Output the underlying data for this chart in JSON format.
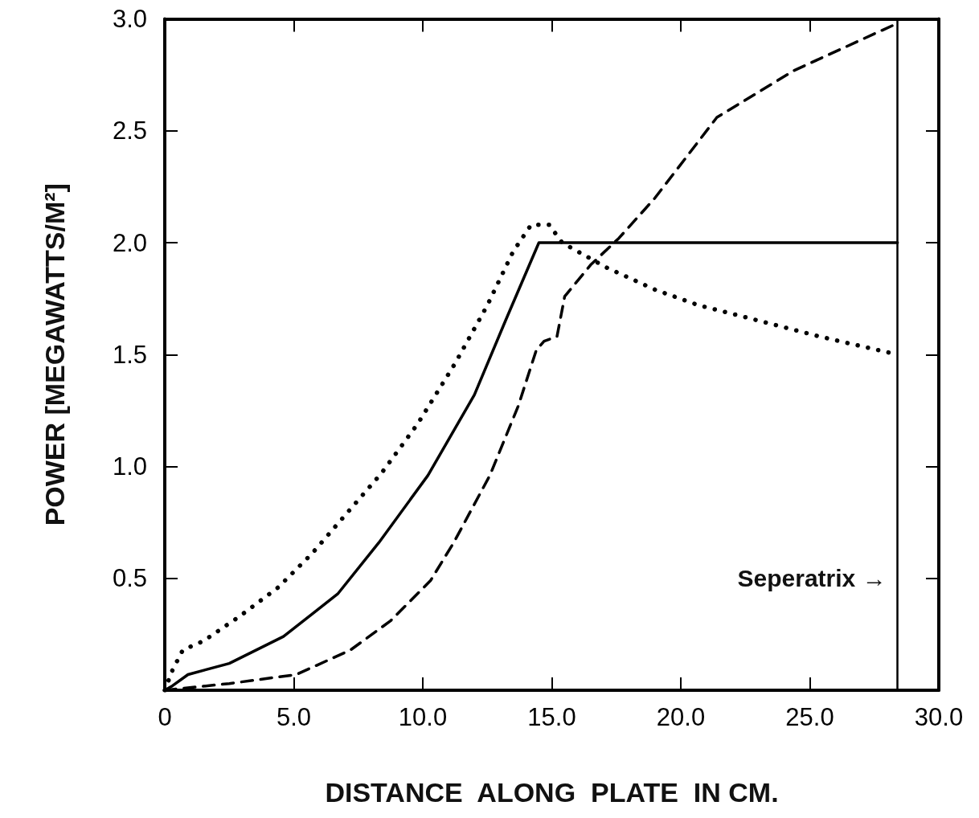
{
  "chart_data": {
    "type": "line",
    "xlabel": "DISTANCE  ALONG  PLATE  IN CM.",
    "ylabel": "POWER [MEGAWATTS/M²]",
    "xlim": [
      0,
      30
    ],
    "ylim": [
      0,
      3
    ],
    "xticks": [
      0,
      {
        "value": 5,
        "label": "5.0"
      },
      {
        "value": 10,
        "label": "10.0"
      },
      {
        "value": 15,
        "label": "15.0"
      },
      {
        "value": 20,
        "label": "20.0"
      },
      {
        "value": 25,
        "label": "25.0"
      },
      {
        "value": 30,
        "label": "30.0"
      }
    ],
    "yticks": [
      0.5,
      {
        "value": 1,
        "label": "1.0"
      },
      1.5,
      {
        "value": 2,
        "label": "2.0"
      },
      2.5,
      {
        "value": 3,
        "label": "3.0"
      }
    ],
    "grid": false,
    "marker": "none",
    "series": [
      {
        "color": "#000000",
        "line_style": "solid",
        "x": [
          0,
          0.3,
          0.9,
          2.5,
          4.6,
          6.7,
          8.3,
          10.2,
          12.0,
          13.2,
          14.5,
          28.4
        ],
        "values": [
          0,
          0.02,
          0.07,
          0.12,
          0.24,
          0.43,
          0.66,
          0.96,
          1.32,
          1.65,
          2.0,
          2.0
        ]
      },
      {
        "color": "#000000",
        "line_style": "dotted",
        "x": [
          0,
          0.3,
          0.7,
          1.5,
          2.9,
          4.4,
          5.7,
          8.4,
          9.8,
          11.25,
          12.5,
          13.5,
          14.2,
          14.9,
          15.4,
          17.1,
          19.0,
          20.7,
          22.4,
          25.4,
          28.4
        ],
        "values": [
          0,
          0.09,
          0.18,
          0.22,
          0.33,
          0.46,
          0.61,
          0.97,
          1.19,
          1.46,
          1.72,
          1.96,
          2.08,
          2.08,
          2.0,
          1.89,
          1.79,
          1.72,
          1.67,
          1.58,
          1.5
        ]
      },
      {
        "color": "#000000",
        "line_style": "dashed",
        "x": [
          0,
          2.5,
          5.1,
          7.2,
          8.75,
          10.3,
          11.2,
          12.6,
          13.7,
          14.4,
          14.7,
          15.2,
          15.4,
          15.5,
          16.5,
          17.6,
          19.0,
          21.4,
          24.4,
          28.2
        ],
        "values": [
          0,
          0.03,
          0.07,
          0.18,
          0.31,
          0.49,
          0.66,
          0.96,
          1.27,
          1.52,
          1.56,
          1.58,
          1.7,
          1.76,
          1.9,
          2.02,
          2.2,
          2.56,
          2.77,
          2.97
        ]
      }
    ],
    "ref_lines": [
      {
        "axis": "x",
        "value": 28.4,
        "color": "#000000",
        "line_style": "solid"
      }
    ],
    "annotations": [
      {
        "text": "Seperatrix →",
        "x": 28.4,
        "y": 0.5
      }
    ]
  }
}
